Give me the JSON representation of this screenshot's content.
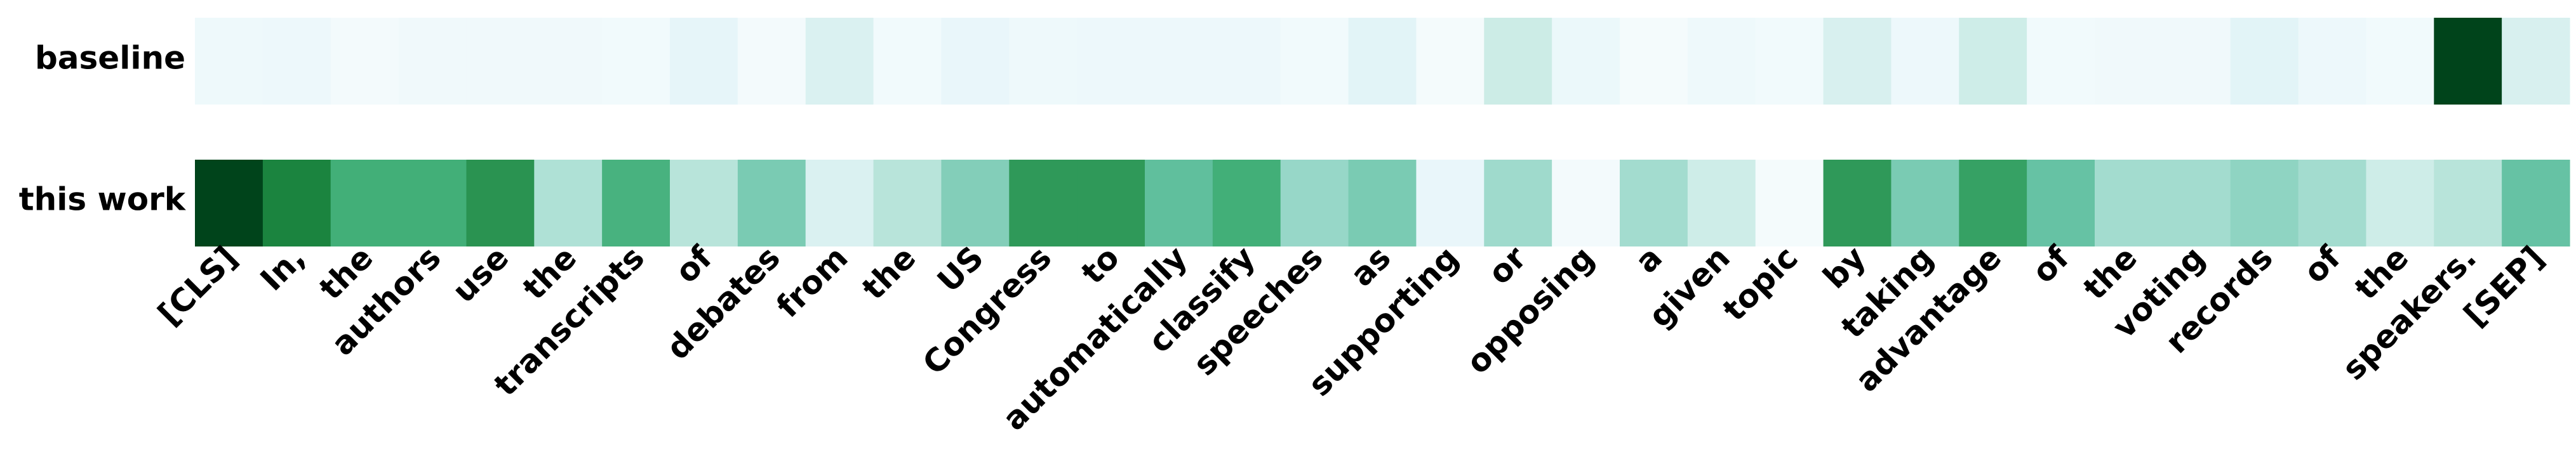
{
  "chart_data": {
    "type": "heatmap",
    "title": "",
    "xlabel": "",
    "ylabel": "",
    "colormap": "Greens",
    "colormap_stops": [
      "#f7fcfd",
      "#e5f5f9",
      "#ccece6",
      "#99d8c9",
      "#66c2a4",
      "#41ae76",
      "#238b45",
      "#006d2c",
      "#00441b"
    ],
    "grid": false,
    "legend": "none",
    "rows": [
      "baseline",
      "this work"
    ],
    "tokens": [
      "[CLS]",
      "In,",
      "the",
      "authors",
      "use",
      "the",
      "transcripts",
      "of",
      "debates",
      "from",
      "the",
      "US",
      "Congress",
      "to",
      "automatically",
      "classify",
      "speeches",
      "as",
      "supporting",
      "or",
      "opposing",
      "a",
      "given",
      "topic",
      "by",
      "taking",
      "advantage",
      "of",
      "the",
      "voting",
      "records",
      "of",
      "the",
      "speakers.",
      "[SEP]"
    ],
    "series": [
      {
        "name": "baseline",
        "values": [
          0.06,
          0.07,
          0.03,
          0.05,
          0.05,
          0.05,
          0.04,
          0.12,
          0.03,
          0.18,
          0.04,
          0.1,
          0.06,
          0.07,
          0.07,
          0.07,
          0.04,
          0.14,
          0.02,
          0.25,
          0.08,
          0.02,
          0.06,
          0.04,
          0.19,
          0.07,
          0.24,
          0.04,
          0.05,
          0.05,
          0.14,
          0.07,
          0.04,
          1.0,
          0.19
        ]
      },
      {
        "name": "this work",
        "values": [
          1.0,
          0.78,
          0.62,
          0.62,
          0.72,
          0.32,
          0.6,
          0.3,
          0.45,
          0.18,
          0.3,
          0.43,
          0.7,
          0.7,
          0.52,
          0.62,
          0.38,
          0.45,
          0.1,
          0.36,
          0.03,
          0.35,
          0.24,
          0.02,
          0.7,
          0.45,
          0.67,
          0.5,
          0.35,
          0.35,
          0.4,
          0.35,
          0.24,
          0.3,
          0.5
        ]
      }
    ]
  }
}
